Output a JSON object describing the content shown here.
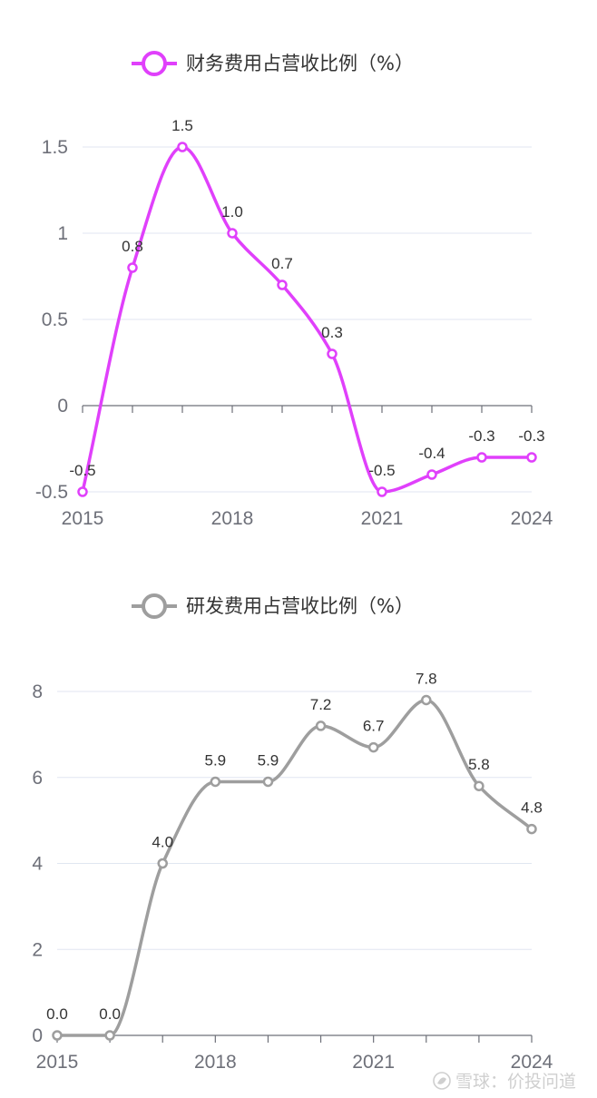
{
  "chart_data": [
    {
      "type": "line",
      "smooth": true,
      "x": [
        "2015",
        "2016",
        "2017",
        "2018",
        "2019",
        "2020",
        "2021",
        "2022",
        "2023",
        "2024"
      ],
      "series": [
        {
          "name": "财务费用占营收比例（%）",
          "values": [
            -0.5,
            0.8,
            1.5,
            1.0,
            0.7,
            0.3,
            -0.5,
            -0.4,
            -0.3,
            -0.3
          ],
          "color": "#e040fb"
        }
      ],
      "data_labels": [
        "-0.5",
        "0.8",
        "1.5",
        "1.0",
        "0.7",
        "0.3",
        "-0.5",
        "-0.4",
        "-0.3",
        "-0.3"
      ],
      "x_ticks": [
        "2015",
        "2018",
        "2021",
        "2024"
      ],
      "y_ticks": [
        "-0.5",
        "0",
        "0.5",
        "1",
        "1.5"
      ],
      "ylim": [
        -0.5,
        1.5
      ],
      "legend": "top-center",
      "grid": true
    },
    {
      "type": "line",
      "smooth": true,
      "x": [
        "2015",
        "2016",
        "2017",
        "2018",
        "2019",
        "2020",
        "2021",
        "2022",
        "2023",
        "2024"
      ],
      "series": [
        {
          "name": "研发费用占营收比例（%）",
          "values": [
            0.0,
            0.0,
            4.0,
            5.9,
            5.9,
            7.2,
            6.7,
            7.8,
            5.8,
            4.8
          ],
          "color": "#9e9e9e"
        }
      ],
      "data_labels": [
        "0.0",
        "0.0",
        "4.0",
        "5.9",
        "5.9",
        "7.2",
        "6.7",
        "7.8",
        "5.8",
        "4.8"
      ],
      "x_ticks": [
        "2015",
        "2018",
        "2021",
        "2024"
      ],
      "y_ticks": [
        "0",
        "2",
        "4",
        "6",
        "8"
      ],
      "ylim": [
        0,
        8
      ],
      "legend": "top-center",
      "grid": true
    }
  ],
  "watermark": "雪球：价投问道"
}
